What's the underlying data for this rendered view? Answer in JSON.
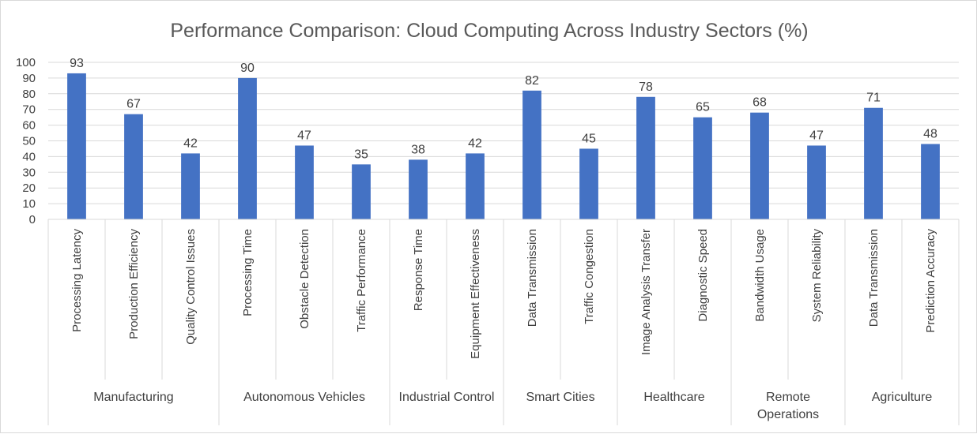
{
  "chart_data": {
    "type": "bar",
    "title": "Performance Comparison: Cloud Computing Across Industry Sectors (%)",
    "xlabel": "",
    "ylabel": "",
    "ylim": [
      0,
      100
    ],
    "yticks": [
      "0",
      "10",
      "20",
      "30",
      "40",
      "50",
      "60",
      "70",
      "80",
      "90",
      "100"
    ],
    "grid": true,
    "legend": "none",
    "bar_color": "#4472c4",
    "groups": [
      {
        "name": [
          "Manufacturing"
        ],
        "categories": [
          "Processing Latency",
          "Production Efficiency",
          "Quality Control Issues"
        ],
        "values": [
          93,
          67,
          42
        ]
      },
      {
        "name": [
          "Autonomous Vehicles"
        ],
        "categories": [
          "Processing Time",
          "Obstacle Detection",
          "Traffic Performance"
        ],
        "values": [
          90,
          47,
          35
        ]
      },
      {
        "name": [
          "Industrial Control"
        ],
        "categories": [
          "Response Time",
          "Equipment Effectiveness"
        ],
        "values": [
          38,
          42
        ]
      },
      {
        "name": [
          "Smart Cities"
        ],
        "categories": [
          "Data Transmission",
          "Traffic Congestion"
        ],
        "values": [
          82,
          45
        ]
      },
      {
        "name": [
          "Healthcare"
        ],
        "categories": [
          "Image Analysis Transfer",
          "Diagnostic Speed"
        ],
        "values": [
          78,
          65
        ]
      },
      {
        "name": [
          "Remote",
          "Operations"
        ],
        "categories": [
          "Bandwidth Usage",
          "System Reliability"
        ],
        "values": [
          68,
          47
        ]
      },
      {
        "name": [
          "Agriculture"
        ],
        "categories": [
          "Data Transmission",
          "Prediction Accuracy"
        ],
        "values": [
          71,
          48
        ]
      }
    ]
  }
}
